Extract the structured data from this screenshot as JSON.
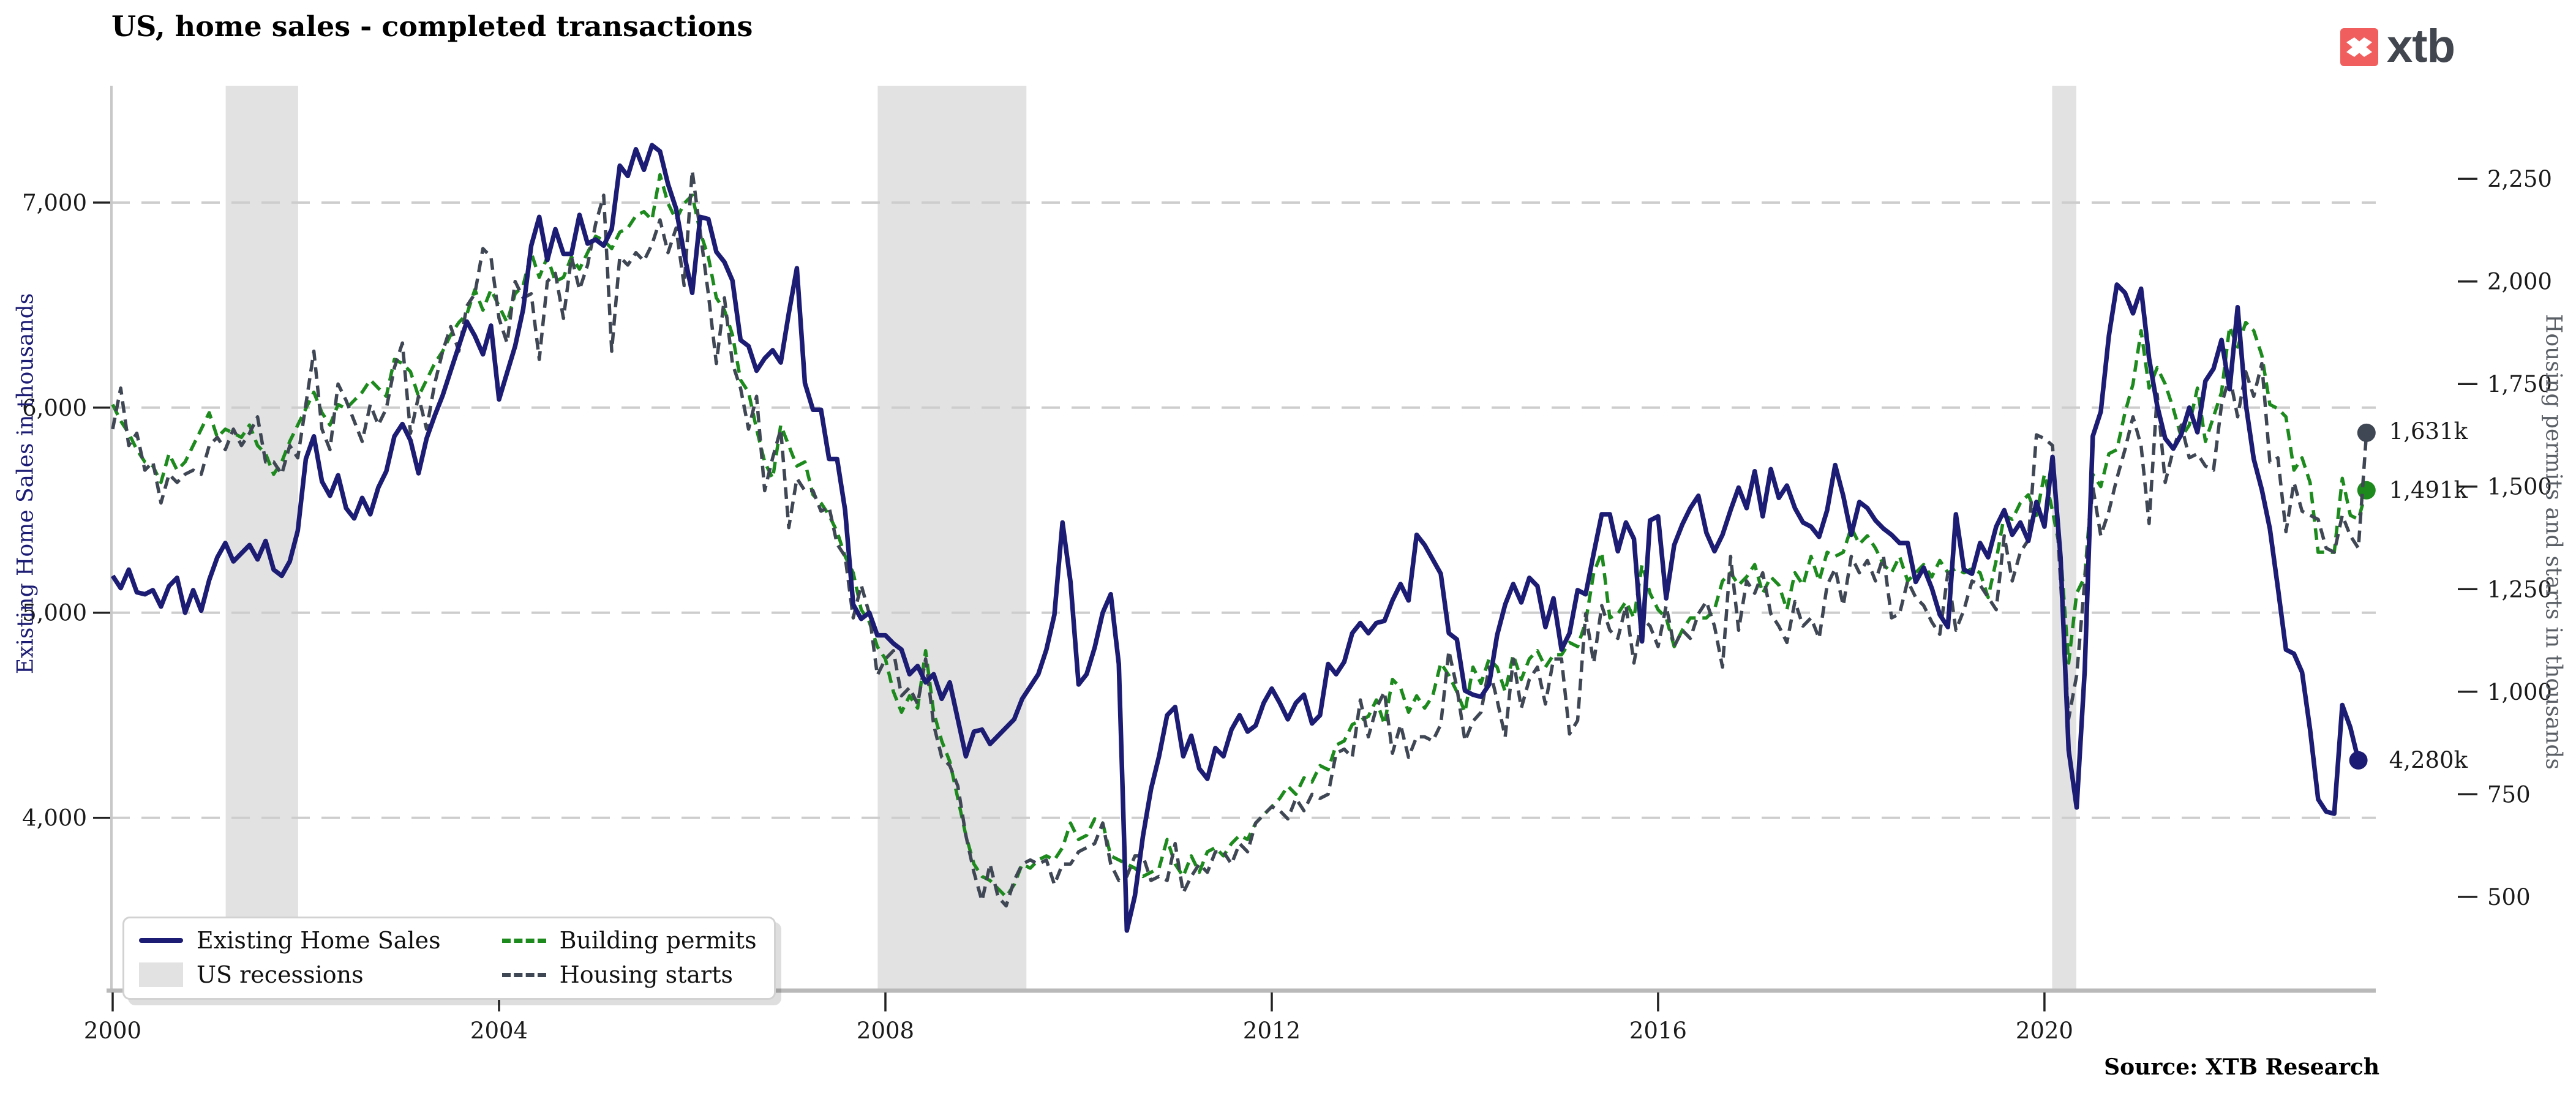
{
  "title": "US, home sales - completed transactions",
  "source": "Source: XTB Research",
  "logo": {
    "text": "xtb",
    "accent_color": "#f15e5e",
    "text_color": "#42474f",
    "mark": "x-icon"
  },
  "colors": {
    "existing_home_sales": "#1c1c74",
    "building_permits": "#1d8a1d",
    "housing_starts": "#3f4654",
    "recession": "#e2e2e2",
    "gridline": "#cdcdcd",
    "axis_spine": "#b9b9b9",
    "left_spine": "#c8c8c8",
    "tick_text": "#1a1a1a"
  },
  "legend": {
    "items": [
      {
        "label": "Existing Home Sales",
        "swatch": "line-solid",
        "color": "#1c1c74"
      },
      {
        "label": "Building permits",
        "swatch": "line-dashed",
        "color": "#1d8a1d"
      },
      {
        "label": "US recessions",
        "swatch": "patch",
        "color": "#e2e2e2"
      },
      {
        "label": "Housing starts",
        "swatch": "line-dashed",
        "color": "#3f4654"
      }
    ]
  },
  "end_labels": {
    "housing_starts": "1,631k",
    "building_permits": "1,491k",
    "existing_home_sales": "4,280k"
  },
  "chart_data": {
    "type": "line",
    "title": "US, home sales - completed transactions",
    "x_unit": "year, monthly data",
    "x_range": [
      2000,
      2023.43
    ],
    "x_ticks": [
      2000,
      2004,
      2008,
      2012,
      2016,
      2020
    ],
    "grid": "horizontal-dashed",
    "legend_position": "bottom-left",
    "left_axis": {
      "label": "Existing Home Sales in thousands",
      "color": "#1c1c74",
      "ticks": [
        4000,
        5000,
        6000,
        7000
      ],
      "range": [
        3160,
        7570
      ]
    },
    "right_axis": {
      "label": "Housing permits and starts in thousands",
      "color": "#5a5f66",
      "ticks": [
        500,
        750,
        1000,
        1250,
        1500,
        1750,
        2000,
        2250
      ],
      "range": [
        273,
        2477
      ]
    },
    "recessions": [
      [
        2001.17,
        2001.92
      ],
      [
        2007.92,
        2009.46
      ],
      [
        2020.08,
        2020.33
      ]
    ],
    "series": [
      {
        "name": "Building permits",
        "axis": "right",
        "style": "dashed",
        "color": "#1d8a1d",
        "x_start": 2000,
        "x_step_months": 1,
        "end_value_label": "1,491k",
        "values": [
          1700,
          1660,
          1630,
          1590,
          1560,
          1550,
          1510,
          1580,
          1540,
          1560,
          1600,
          1640,
          1680,
          1620,
          1640,
          1630,
          1620,
          1650,
          1600,
          1580,
          1530,
          1560,
          1610,
          1650,
          1690,
          1730,
          1680,
          1650,
          1700,
          1690,
          1710,
          1730,
          1760,
          1740,
          1720,
          1810,
          1800,
          1780,
          1720,
          1760,
          1800,
          1830,
          1870,
          1900,
          1920,
          1980,
          1930,
          1980,
          1940,
          1900,
          1970,
          1990,
          2070,
          2010,
          2060,
          2000,
          2010,
          2060,
          2030,
          2070,
          2110,
          2100,
          2080,
          2120,
          2130,
          2160,
          2170,
          2150,
          2260,
          2190,
          2150,
          2190,
          2210,
          2120,
          2060,
          1960,
          1930,
          1870,
          1760,
          1730,
          1640,
          1560,
          1520,
          1650,
          1600,
          1550,
          1560,
          1480,
          1460,
          1430,
          1390,
          1330,
          1290,
          1200,
          1170,
          1110,
          1080,
          1000,
          950,
          990,
          960,
          1100,
          950,
          880,
          830,
          740,
          650,
          580,
          550,
          540,
          520,
          500,
          530,
          580,
          570,
          590,
          600,
          590,
          620,
          680,
          640,
          650,
          690,
          680,
          600,
          590,
          580,
          570,
          550,
          560,
          570,
          640,
          580,
          550,
          600,
          560,
          610,
          620,
          600,
          630,
          650,
          640,
          680,
          700,
          720,
          740,
          770,
          750,
          790,
          780,
          820,
          810,
          870,
          880,
          920,
          930,
          940,
          980,
          920,
          1030,
          1010,
          950,
          990,
          960,
          990,
          1070,
          1040,
          1000,
          950,
          1060,
          1020,
          1080,
          1060,
          1000,
          1090,
          1030,
          1080,
          1100,
          1060,
          1090,
          1090,
          1120,
          1110,
          1170,
          1290,
          1340,
          1180,
          1190,
          1220,
          1180,
          1310,
          1240,
          1200,
          1180,
          1110,
          1150,
          1180,
          1180,
          1180,
          1200,
          1270,
          1290,
          1260,
          1280,
          1310,
          1240,
          1280,
          1260,
          1200,
          1290,
          1260,
          1330,
          1270,
          1340,
          1330,
          1340,
          1400,
          1360,
          1380,
          1350,
          1310,
          1290,
          1330,
          1270,
          1290,
          1310,
          1280,
          1320,
          1290,
          1300,
          1290,
          1300,
          1290,
          1230,
          1320,
          1430,
          1420,
          1460,
          1480,
          1430,
          1530,
          1440,
          1340,
          1070,
          1240,
          1280,
          1530,
          1500,
          1580,
          1590,
          1680,
          1750,
          1880,
          1740,
          1790,
          1750,
          1690,
          1620,
          1650,
          1740,
          1610,
          1670,
          1730,
          1890,
          1840,
          1900,
          1880,
          1820,
          1700,
          1690,
          1670,
          1540,
          1570,
          1510,
          1340,
          1340,
          1340,
          1520,
          1430,
          1420,
          1491
        ]
      },
      {
        "name": "Housing starts",
        "axis": "right",
        "style": "dashed",
        "color": "#3f4654",
        "x_start": 2000,
        "x_step_months": 1,
        "end_value_label": "1,631k",
        "values": [
          1640,
          1740,
          1600,
          1630,
          1540,
          1560,
          1460,
          1530,
          1510,
          1530,
          1540,
          1530,
          1600,
          1620,
          1590,
          1640,
          1600,
          1630,
          1670,
          1560,
          1560,
          1530,
          1600,
          1570,
          1700,
          1830,
          1640,
          1590,
          1750,
          1710,
          1660,
          1610,
          1700,
          1650,
          1690,
          1790,
          1850,
          1630,
          1720,
          1640,
          1750,
          1830,
          1890,
          1830,
          1940,
          1970,
          2080,
          2060,
          1910,
          1850,
          2000,
          1960,
          1970,
          1810,
          2000,
          2020,
          1910,
          2060,
          1980,
          2040,
          2140,
          2210,
          1830,
          2060,
          2040,
          2070,
          2050,
          2090,
          2150,
          2070,
          2130,
          1990,
          2270,
          2120,
          1970,
          1800,
          1960,
          1800,
          1740,
          1640,
          1720,
          1490,
          1570,
          1640,
          1400,
          1520,
          1490,
          1490,
          1440,
          1450,
          1360,
          1330,
          1180,
          1260,
          1190,
          1040,
          1080,
          1100,
          990,
          1010,
          970,
          1080,
          920,
          840,
          820,
          770,
          650,
          560,
          490,
          580,
          500,
          478,
          540,
          580,
          590,
          580,
          590,
          530,
          580,
          580,
          610,
          620,
          630,
          680,
          580,
          540,
          550,
          600,
          600,
          540,
          550,
          540,
          630,
          510,
          550,
          580,
          560,
          610,
          610,
          580,
          630,
          610,
          680,
          700,
          720,
          710,
          690,
          740,
          710,
          750,
          740,
          750,
          850,
          860,
          840,
          980,
          890,
          960,
          1000,
          850,
          920,
          840,
          890,
          890,
          880,
          920,
          1100,
          1010,
          880,
          928,
          950,
          1060,
          980,
          890,
          1080,
          960,
          1030,
          1060,
          970,
          1080,
          1080,
          897,
          930,
          1190,
          1070,
          1210,
          1150,
          1130,
          1210,
          1070,
          1180,
          1160,
          1110,
          1210,
          1110,
          1150,
          1130,
          1190,
          1220,
          1160,
          1060,
          1330,
          1150,
          1270,
          1240,
          1290,
          1190,
          1160,
          1120,
          1220,
          1160,
          1180,
          1130,
          1260,
          1300,
          1210,
          1330,
          1290,
          1320,
          1270,
          1330,
          1180,
          1190,
          1270,
          1230,
          1210,
          1170,
          1140,
          1290,
          1150,
          1200,
          1270,
          1260,
          1230,
          1200,
          1380,
          1270,
          1340,
          1370,
          1626,
          1617,
          1600,
          1270,
          934,
          1040,
          1270,
          1500,
          1380,
          1440,
          1520,
          1590,
          1670,
          1600,
          1410,
          1725,
          1510,
          1590,
          1650,
          1570,
          1580,
          1550,
          1540,
          1700,
          1770,
          1670,
          1780,
          1720,
          1800,
          1560,
          1570,
          1390,
          1510,
          1440,
          1430,
          1420,
          1350,
          1340,
          1430,
          1380,
          1350,
          1631
        ]
      },
      {
        "name": "Existing Home Sales",
        "axis": "left",
        "style": "solid",
        "color": "#1c1c74",
        "x_start": 2000,
        "x_step_months": 1,
        "end_value_label": "4,280k",
        "values": [
          5180,
          5120,
          5210,
          5100,
          5090,
          5110,
          5030,
          5130,
          5170,
          5000,
          5110,
          5010,
          5160,
          5270,
          5340,
          5250,
          5290,
          5330,
          5260,
          5350,
          5210,
          5180,
          5250,
          5400,
          5750,
          5860,
          5640,
          5570,
          5670,
          5510,
          5460,
          5560,
          5480,
          5610,
          5690,
          5860,
          5920,
          5840,
          5680,
          5850,
          5960,
          6060,
          6180,
          6300,
          6420,
          6350,
          6260,
          6400,
          6040,
          6170,
          6300,
          6480,
          6790,
          6930,
          6720,
          6870,
          6750,
          6750,
          6940,
          6800,
          6820,
          6790,
          6870,
          7180,
          7130,
          7260,
          7160,
          7280,
          7250,
          7090,
          6970,
          6750,
          6560,
          6930,
          6920,
          6760,
          6710,
          6620,
          6330,
          6300,
          6180,
          6240,
          6280,
          6220,
          6460,
          6680,
          6120,
          5990,
          5990,
          5750,
          5750,
          5500,
          5040,
          4970,
          5000,
          4890,
          4890,
          4850,
          4820,
          4700,
          4740,
          4660,
          4700,
          4580,
          4660,
          4480,
          4300,
          4420,
          4430,
          4360,
          4400,
          4440,
          4480,
          4580,
          4640,
          4700,
          4820,
          4990,
          5440,
          5150,
          4650,
          4700,
          4830,
          5000,
          5090,
          4750,
          3450,
          3620,
          3910,
          4140,
          4300,
          4500,
          4540,
          4300,
          4400,
          4240,
          4190,
          4340,
          4300,
          4430,
          4500,
          4420,
          4450,
          4560,
          4630,
          4560,
          4480,
          4560,
          4600,
          4460,
          4500,
          4750,
          4700,
          4760,
          4900,
          4950,
          4900,
          4950,
          4960,
          5060,
          5140,
          5060,
          5380,
          5330,
          5260,
          5190,
          4900,
          4870,
          4620,
          4600,
          4590,
          4650,
          4890,
          5040,
          5140,
          5050,
          5170,
          5130,
          4930,
          5070,
          4820,
          4900,
          5110,
          5090,
          5290,
          5480,
          5480,
          5300,
          5440,
          5360,
          4860,
          5450,
          5470,
          5070,
          5330,
          5430,
          5510,
          5570,
          5390,
          5300,
          5380,
          5500,
          5610,
          5510,
          5690,
          5470,
          5700,
          5560,
          5620,
          5510,
          5440,
          5420,
          5370,
          5500,
          5720,
          5570,
          5380,
          5540,
          5510,
          5450,
          5410,
          5380,
          5340,
          5340,
          5150,
          5220,
          5120,
          4990,
          4930,
          5480,
          5210,
          5190,
          5340,
          5270,
          5420,
          5500,
          5380,
          5440,
          5350,
          5540,
          5420,
          5760,
          5270,
          4330,
          4050,
          4720,
          5860,
          5980,
          6350,
          6600,
          6560,
          6460,
          6580,
          6240,
          6010,
          5850,
          5800,
          5870,
          6000,
          5880,
          6130,
          6190,
          6330,
          6090,
          6490,
          6020,
          5750,
          5600,
          5410,
          5120,
          4820,
          4800,
          4710,
          4430,
          4090,
          4030,
          4020,
          4550,
          4440,
          4280
        ]
      }
    ]
  }
}
